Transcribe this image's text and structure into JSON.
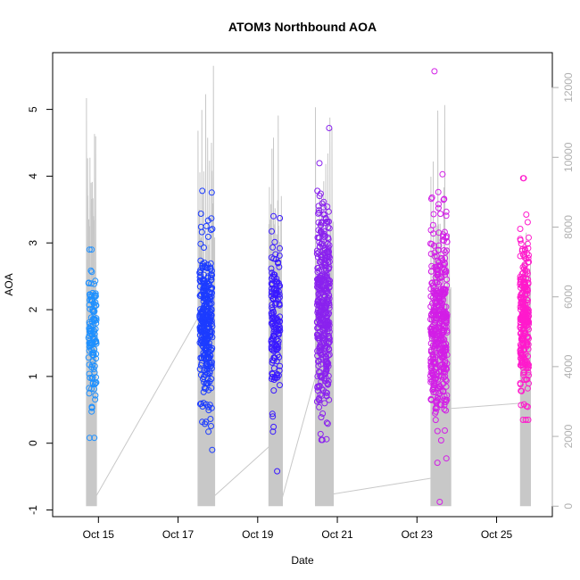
{
  "chart_data": {
    "type": "scatter",
    "title": "ATOM3 Northbound AOA",
    "xlabel": "Date",
    "ylabel": "AOA",
    "x_tick_labels": [
      "Oct 15",
      "Oct 17",
      "Oct 19",
      "Oct 21",
      "Oct 23",
      "Oct 25"
    ],
    "x_tick_days": [
      15,
      17,
      19,
      21,
      23,
      25
    ],
    "xlim_days": [
      13.85,
      26.4
    ],
    "ylim": [
      -1.1,
      5.85
    ],
    "y_ticks": [
      -1,
      0,
      1,
      2,
      3,
      4,
      5
    ],
    "y_tick_labels": [
      "-1",
      "0",
      "1",
      "2",
      "3",
      "4",
      "5"
    ],
    "y2lim": [
      -300,
      13000
    ],
    "y2_ticks": [
      0,
      2000,
      4000,
      6000,
      8000,
      10000,
      12000
    ],
    "y2_tick_labels": [
      "0",
      "2000",
      "4000",
      "6000",
      "8000",
      "10000",
      "12000"
    ],
    "grid": false,
    "colors": {
      "axis": "#000000",
      "secondary_axis": "#b0b0b0",
      "line": "#c8c8c8",
      "cluster_1": "#1e90ff",
      "cluster_2": "#1c3cff",
      "cluster_3": "#3a1aff",
      "cluster_4": "#8a22ee",
      "cluster_5": "#d21ee6",
      "cluster_6": "#ff1acc"
    },
    "series": [
      {
        "color_key": "cluster_1",
        "center_day": 14.85,
        "width_days": 0.2,
        "n": 120,
        "mean": 1.6,
        "sd": 0.5,
        "min": 0.08,
        "max": 2.9
      },
      {
        "color_key": "cluster_2",
        "center_day": 17.7,
        "width_days": 0.32,
        "n": 320,
        "mean": 1.75,
        "sd": 0.6,
        "min": -0.1,
        "max": 3.78
      },
      {
        "color_key": "cluster_3",
        "center_day": 19.45,
        "width_days": 0.22,
        "n": 160,
        "mean": 1.75,
        "sd": 0.65,
        "min": -0.42,
        "max": 3.4
      },
      {
        "color_key": "cluster_4",
        "center_day": 20.65,
        "width_days": 0.32,
        "n": 400,
        "mean": 2.05,
        "sd": 0.75,
        "min": 0.05,
        "max": 4.72
      },
      {
        "color_key": "cluster_5",
        "center_day": 23.55,
        "width_days": 0.42,
        "n": 420,
        "mean": 1.8,
        "sd": 0.75,
        "min": -0.88,
        "max": 5.57
      },
      {
        "color_key": "cluster_6",
        "center_day": 25.7,
        "width_days": 0.22,
        "n": 260,
        "mean": 1.85,
        "sd": 0.6,
        "min": 0.35,
        "max": 3.97
      }
    ],
    "secondary_series": {
      "type": "line",
      "bursts": [
        {
          "start_day": 14.7,
          "end_day": 14.95,
          "peak": 12000,
          "min": 0
        },
        {
          "start_day": 17.5,
          "end_day": 17.92,
          "peak": 12900,
          "min": 0
        },
        {
          "start_day": 19.28,
          "end_day": 19.62,
          "peak": 12300,
          "min": 0
        },
        {
          "start_day": 20.45,
          "end_day": 20.9,
          "peak": 11500,
          "min": 0
        },
        {
          "start_day": 23.35,
          "end_day": 23.85,
          "peak": 12400,
          "min": 0
        },
        {
          "start_day": 25.6,
          "end_day": 25.85,
          "peak": 9500,
          "min": 0
        }
      ],
      "connectors": [
        [
          14.95,
          300,
          17.5,
          5400
        ],
        [
          17.92,
          300,
          19.28,
          1700
        ],
        [
          19.62,
          250,
          20.45,
          3700
        ],
        [
          20.9,
          350,
          23.35,
          800
        ],
        [
          23.85,
          2800,
          25.6,
          2950
        ]
      ]
    }
  }
}
